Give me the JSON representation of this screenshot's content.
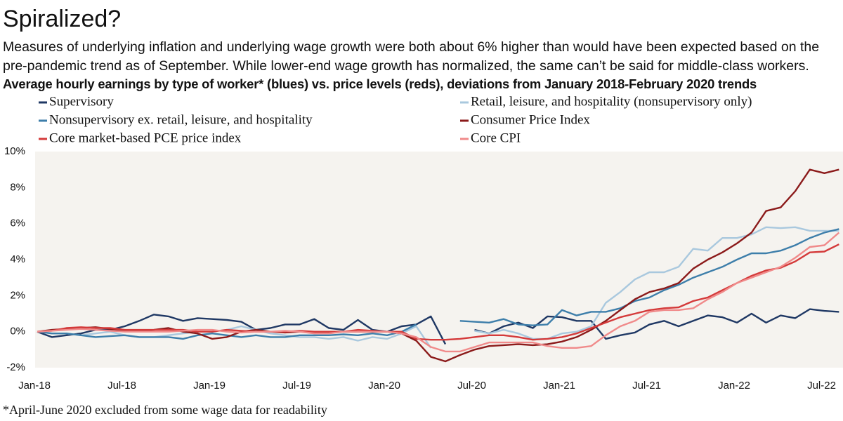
{
  "chart_data": {
    "type": "line",
    "title": "Spiralized?",
    "subtitle": "Measures of underlying inflation and underlying wage growth were both about 6% higher than would have been expected based on the pre-pandemic trend as of September. While lower-end wage growth has normalized, the same can’t be said for middle-class workers.",
    "chart_title": "Average hourly earnings by type of worker* (blues) vs. price levels (reds), deviations from January 2018-February 2020 trends",
    "footnote": "*April-June 2020 excluded from some wage data for readability",
    "categories": [
      "Jan-18",
      null,
      null,
      null,
      null,
      null,
      "Jul-18",
      null,
      null,
      null,
      null,
      null,
      "Jan-19",
      null,
      null,
      null,
      null,
      null,
      "Jul-19",
      null,
      null,
      null,
      null,
      null,
      "Jan-20",
      null,
      null,
      null,
      null,
      null,
      "Jul-20",
      null,
      null,
      null,
      null,
      null,
      "Jan-21",
      null,
      null,
      null,
      null,
      null,
      "Jul-21",
      null,
      null,
      null,
      null,
      null,
      "Jan-22",
      null,
      null,
      null,
      null,
      null,
      "Jul-22",
      null
    ],
    "ylim": [
      -2,
      10
    ],
    "yticks": [
      {
        "value": -2,
        "label": "-2%"
      },
      {
        "value": 0,
        "label": "0%"
      },
      {
        "value": 2,
        "label": "2%"
      },
      {
        "value": 4,
        "label": "4%"
      },
      {
        "value": 6,
        "label": "6%"
      },
      {
        "value": 8,
        "label": "8%"
      },
      {
        "value": 10,
        "label": "10%"
      }
    ],
    "grid": false,
    "series": [
      {
        "name": "Supervisory",
        "color": "#1f3864",
        "values": [
          0,
          -0.3,
          -0.2,
          -0.1,
          0.1,
          0.1,
          0.3,
          0.6,
          0.95,
          0.85,
          0.6,
          0.75,
          0.7,
          0.65,
          0.55,
          0.1,
          0.2,
          0.4,
          0.4,
          0.7,
          0.2,
          0.1,
          0.65,
          0.1,
          0,
          0.3,
          0.4,
          0.85,
          -0.7,
          null,
          0.1,
          -0.1,
          0.3,
          0.5,
          0.2,
          0.85,
          0.8,
          0.6,
          0.6,
          -0.4,
          -0.2,
          -0.05,
          0.4,
          0.6,
          0.3,
          0.6,
          0.9,
          0.8,
          0.5,
          1.0,
          0.5,
          0.9,
          0.75,
          1.25,
          1.15,
          1.1
        ]
      },
      {
        "name": "Retail, leisure, and hospitality (nonsupervisory only)",
        "color": "#a9c8de",
        "values": [
          0,
          -0.1,
          -0.1,
          -0.2,
          -0.1,
          0,
          -0.2,
          -0.3,
          -0.3,
          -0.2,
          -0.1,
          0,
          0,
          0.1,
          0.3,
          0.1,
          -0.1,
          -0.2,
          -0.3,
          -0.3,
          -0.4,
          -0.3,
          -0.5,
          -0.3,
          -0.4,
          -0.1,
          0.3,
          -0.9,
          null,
          null,
          0.05,
          -0.1,
          0.1,
          -0.1,
          -0.4,
          -0.4,
          -0.1,
          0,
          0.3,
          1.6,
          2.2,
          2.9,
          3.3,
          3.3,
          3.6,
          4.6,
          4.5,
          5.2,
          5.2,
          5.4,
          5.8,
          5.75,
          5.8,
          5.6,
          5.6,
          5.6
        ]
      },
      {
        "name": "Nonsupervisory ex. retail, leisure, and hospitality",
        "color": "#3d7eaa",
        "values": [
          0,
          -0.1,
          -0.1,
          -0.2,
          -0.3,
          -0.25,
          -0.2,
          -0.3,
          -0.3,
          -0.3,
          -0.4,
          -0.2,
          -0.1,
          -0.2,
          -0.3,
          -0.2,
          -0.3,
          -0.3,
          -0.2,
          -0.2,
          -0.2,
          -0.15,
          -0.2,
          -0.1,
          -0.2,
          0,
          0.4,
          null,
          null,
          0.6,
          0.55,
          0.5,
          0.7,
          0.4,
          0.35,
          0.4,
          1.2,
          0.9,
          1.1,
          1.1,
          1.3,
          1.7,
          1.9,
          2.3,
          2.6,
          3.0,
          3.3,
          3.6,
          4.0,
          4.35,
          4.35,
          4.5,
          4.8,
          5.2,
          5.5,
          5.7
        ]
      },
      {
        "name": "Consumer Price Index",
        "color": "#8b1a1a",
        "values": [
          0,
          0.1,
          0.15,
          0.2,
          0.25,
          0.15,
          0.05,
          0.05,
          0.1,
          0.2,
          0,
          -0.1,
          -0.4,
          -0.3,
          0,
          0.1,
          0,
          -0.05,
          0,
          0,
          -0.05,
          0,
          0,
          0,
          0,
          -0.1,
          -0.5,
          -1.4,
          -1.65,
          -1.3,
          -1.0,
          -0.8,
          -0.75,
          -0.7,
          -0.75,
          -0.7,
          -0.55,
          -0.3,
          0.1,
          0.6,
          1.2,
          1.8,
          2.2,
          2.4,
          2.7,
          3.5,
          4.0,
          4.4,
          4.9,
          5.5,
          6.7,
          6.9,
          7.8,
          9.0,
          8.8,
          9.0
        ]
      },
      {
        "name": "Core market-based PCE price index",
        "color": "#d43a3a",
        "values": [
          0,
          0.05,
          0.2,
          0.25,
          0.2,
          0.2,
          0.1,
          0.1,
          0.1,
          0.1,
          0.1,
          0,
          0,
          0.1,
          0.05,
          0,
          0,
          0,
          0.05,
          0,
          0,
          0,
          0.1,
          0.05,
          0,
          0,
          -0.4,
          -0.45,
          -0.45,
          -0.4,
          -0.3,
          -0.2,
          -0.2,
          -0.3,
          -0.45,
          -0.4,
          -0.3,
          -0.1,
          0.2,
          0.5,
          0.8,
          1.0,
          1.2,
          1.3,
          1.35,
          1.7,
          1.9,
          2.3,
          2.7,
          3.1,
          3.4,
          3.55,
          3.9,
          4.4,
          4.45,
          4.85
        ]
      },
      {
        "name": "Core CPI",
        "color": "#f08a8a",
        "values": [
          0,
          0.05,
          0.1,
          0.15,
          0.1,
          0.05,
          0,
          0,
          0,
          0,
          0.05,
          0.1,
          0.1,
          0,
          -0.05,
          0,
          0,
          0.05,
          0,
          -0.1,
          -0.1,
          0,
          0,
          0,
          0,
          -0.1,
          -0.3,
          -0.85,
          -1.1,
          -1.1,
          -0.85,
          -0.6,
          -0.6,
          -0.6,
          -0.6,
          -0.8,
          -0.9,
          -0.9,
          -0.8,
          -0.2,
          0.3,
          0.6,
          1.1,
          1.2,
          1.2,
          1.3,
          1.8,
          2.2,
          2.7,
          3.0,
          3.3,
          3.6,
          4.1,
          4.7,
          4.8,
          5.5
        ]
      }
    ]
  }
}
